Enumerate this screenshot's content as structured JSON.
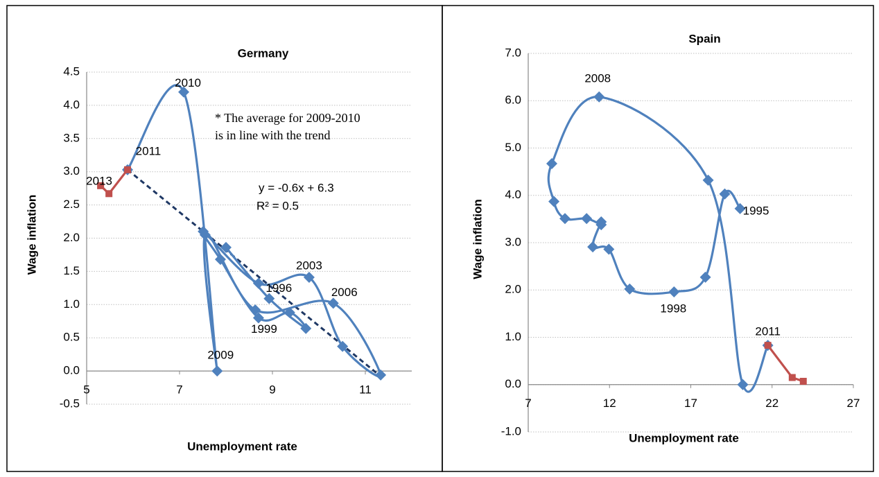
{
  "chart_data": [
    {
      "type": "scatter-line",
      "title": "Germany",
      "xlabel": "Unemployment rate",
      "ylabel": "Wage inflation",
      "xlim": [
        5,
        12
      ],
      "xticks": [
        5,
        7,
        9,
        11
      ],
      "ylim": [
        -0.5,
        4.5
      ],
      "yticks": [
        -0.5,
        {
          "value": 0,
          "label": "0.0"
        },
        0.5,
        {
          "value": 1,
          "label": "1.0"
        },
        1.5,
        {
          "value": 2,
          "label": "2.0"
        },
        2.5,
        {
          "value": 3,
          "label": "3.0"
        },
        3.5,
        {
          "value": 4,
          "label": "4.0"
        },
        4.5
      ],
      "grid": true,
      "series": [
        {
          "color": "#4f81bd",
          "marker": "diamond",
          "x": [
            8.0,
            8.93,
            9.72,
            9.37,
            8.7,
            7.88,
            7.51,
            8.7,
            9.79,
            10.51,
            11.33,
            10.31,
            8.63,
            7.55,
            7.81,
            7.09,
            5.88
          ],
          "values": [
            1.86,
            1.09,
            0.64,
            0.88,
            0.8,
            1.68,
            2.1,
            1.32,
            1.41,
            0.37,
            -0.06,
            1.02,
            0.92,
            2.05,
            0.0,
            4.2,
            3.03
          ],
          "point_labels": [
            null,
            "1996",
            null,
            null,
            "1999",
            null,
            null,
            null,
            "2003",
            null,
            null,
            "2006",
            null,
            null,
            "2009",
            "2010",
            "2011"
          ]
        },
        {
          "color": "#c0504d",
          "marker": "square",
          "x": [
            5.88,
            5.48,
            5.3
          ],
          "values": [
            3.03,
            2.67,
            2.79
          ],
          "point_labels": [
            null,
            null,
            "2013"
          ]
        }
      ],
      "trendline": {
        "color": "#1f3864",
        "x": [
          5.88,
          11.33
        ],
        "values": [
          3.03,
          -0.08
        ]
      },
      "annotations": [
        "y = -0.6x + 6.3",
        "R² = 0.5",
        "* The average for 2009-2010",
        "is in line with the trend"
      ]
    },
    {
      "type": "scatter-line",
      "title": "Spain",
      "xlabel": "Unemployment rate",
      "ylabel": "Wage inflation",
      "xlim": [
        7,
        27
      ],
      "xticks": [
        7,
        12,
        17,
        22,
        27
      ],
      "ylim": [
        -1,
        7
      ],
      "yticks": [
        {
          "value": -1,
          "label": "-1.0"
        },
        {
          "value": 0,
          "label": "0.0"
        },
        {
          "value": 1,
          "label": "1.0"
        },
        {
          "value": 2,
          "label": "2.0"
        },
        {
          "value": 3,
          "label": "3.0"
        },
        {
          "value": 4,
          "label": "4.0"
        },
        {
          "value": 5,
          "label": "5.0"
        },
        {
          "value": 6,
          "label": "6.0"
        },
        {
          "value": 7,
          "label": "7.0"
        }
      ],
      "grid": true,
      "series": [
        {
          "color": "#4f81bd",
          "marker": "diamond",
          "x": [
            20.03,
            19.09,
            17.9,
            15.97,
            13.24,
            11.96,
            10.97,
            11.49,
            11.49,
            10.59,
            9.26,
            8.58,
            8.45,
            11.36,
            18.07,
            20.2,
            21.74
          ],
          "values": [
            3.72,
            4.03,
            2.27,
            1.96,
            2.02,
            2.86,
            2.91,
            3.44,
            3.38,
            3.51,
            3.51,
            3.87,
            4.67,
            6.08,
            4.32,
            0.0,
            0.83
          ],
          "point_labels": [
            "1995",
            null,
            null,
            "1998",
            null,
            null,
            null,
            null,
            null,
            null,
            null,
            null,
            null,
            "2008",
            null,
            null,
            "2011"
          ]
        },
        {
          "color": "#c0504d",
          "marker": "square",
          "x": [
            21.74,
            23.24,
            23.92
          ],
          "values": [
            0.83,
            0.15,
            0.07
          ],
          "point_labels": [
            null,
            null,
            null
          ]
        }
      ]
    }
  ]
}
